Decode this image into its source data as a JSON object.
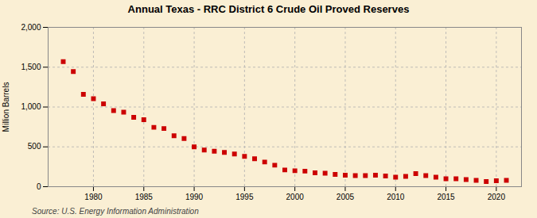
{
  "chart_data": {
    "type": "scatter",
    "title": "Annual Texas - RRC District 6 Crude Oil Proved Reserves",
    "ylabel": "Million Barrels",
    "source": "Source: U.S. Energy Information Administration",
    "color": "#cc0000",
    "marker": "square",
    "grid": true,
    "x": [
      1977,
      1978,
      1979,
      1980,
      1981,
      1982,
      1983,
      1984,
      1985,
      1986,
      1987,
      1988,
      1989,
      1990,
      1991,
      1992,
      1993,
      1994,
      1995,
      1996,
      1997,
      1998,
      1999,
      2000,
      2001,
      2002,
      2003,
      2004,
      2005,
      2006,
      2007,
      2008,
      2009,
      2010,
      2011,
      2012,
      2013,
      2014,
      2015,
      2016,
      2017,
      2018,
      2019,
      2020,
      2021
    ],
    "values": [
      1570,
      1445,
      1160,
      1105,
      1040,
      955,
      935,
      870,
      840,
      745,
      730,
      640,
      605,
      500,
      460,
      445,
      430,
      410,
      380,
      350,
      310,
      270,
      210,
      200,
      195,
      175,
      170,
      155,
      145,
      140,
      140,
      145,
      135,
      120,
      130,
      165,
      140,
      120,
      100,
      100,
      90,
      80,
      65,
      75,
      80
    ],
    "xlim": [
      1975.5,
      2022.5
    ],
    "xticks": [
      1980,
      1985,
      1990,
      1995,
      2000,
      2005,
      2010,
      2015,
      2020
    ],
    "ylim": [
      0,
      2000
    ],
    "yticks": [
      0,
      500,
      {
        "value": 1000,
        "label": "1,000"
      },
      {
        "value": 1500,
        "label": "1,500"
      },
      {
        "value": 2000,
        "label": "2,000"
      }
    ]
  }
}
